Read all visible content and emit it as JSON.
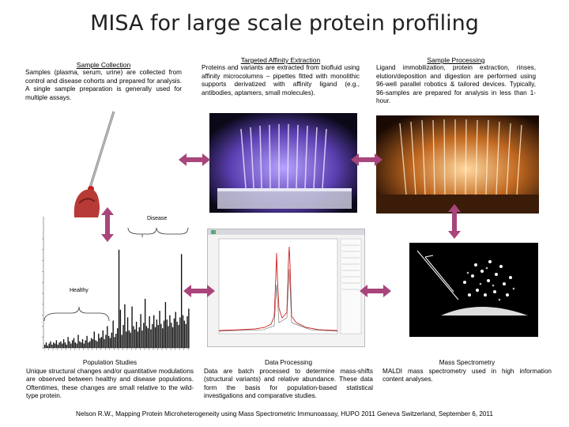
{
  "title": "MISA for large scale protein profiling",
  "sample_collection": {
    "heading": "Sample Collection",
    "text": "Samples (plasma, serum, urine) are collected from control and disease cohorts and prepared for analysis. A single sample preparation is generally used for multiple assays."
  },
  "targeted_affinity": {
    "heading": "Targeted Affinity Extraction",
    "text": "Proteins and variants are extracted from biofluid using affinity microcolumns – pipettes fitted with monolithic supports derivatized with affinity ligand (e.g., antibodies, aptamers, small molecules)."
  },
  "sample_processing": {
    "heading": "Sample Processing",
    "text": "Ligand immobilization, protein extraction, rinses, elution/deposition and digestion are performed using 96-well parallel robotics & tailored devices. Typically, 96-samples are prepared for analysis in less than 1-hour."
  },
  "population_studies": {
    "heading": "Population Studies",
    "text": "Unique structural changes and/or quantitative modulations are observed between healthy and disease populations. Oftentimes, these changes are small relative to the wild-type protein.",
    "disease_label": "Disease",
    "healthy_label": "Healthy"
  },
  "data_processing": {
    "heading": "Data Processing",
    "text": "Data are batch processed to determine mass-shifts (structural variants) and relative abundance. These data form the basis for population-based statistical investigations and comparative studies."
  },
  "mass_spectrometry": {
    "heading": "Mass Spectrometry",
    "text": "MALDI mass spectrometry used in high information content analyses."
  },
  "footer": "Nelson R.W., Mapping Protein Microheterogeneity using Mass Spectrometric Immunoassay, HUPO 2011 Geneva Switzerland, September 6, 2011",
  "colors": {
    "arrow": "#a8457a",
    "photo_bg": "#000000",
    "affinity_glow": "#7a5fd0",
    "processing_glow": "#f0b060",
    "spectrum_red": "#cc2222"
  },
  "chart_data": {
    "type": "bar",
    "title": "",
    "xlabel": "",
    "ylabel": "",
    "ylim": [
      0,
      10
    ],
    "values": [
      0.3,
      0.5,
      0.2,
      0.4,
      0.6,
      0.3,
      0.5,
      0.4,
      0.7,
      0.3,
      0.5,
      0.6,
      0.4,
      0.8,
      0.5,
      0.3,
      1.0,
      0.6,
      0.4,
      0.7,
      0.9,
      0.5,
      0.4,
      1.2,
      0.6,
      0.5,
      0.8,
      0.4,
      0.7,
      1.1,
      0.5,
      0.6,
      0.9,
      0.8,
      1.5,
      0.7,
      0.6,
      1.3,
      0.9,
      1.0,
      1.6,
      0.8,
      1.2,
      2.0,
      1.1,
      0.9,
      1.4,
      2.5,
      1.0,
      1.3,
      1.8,
      9.0,
      3.5,
      1.2,
      2.1,
      4.0,
      1.5,
      2.8,
      1.6,
      1.4,
      3.8,
      2.0,
      1.7,
      2.4,
      1.5,
      1.9,
      3.1,
      1.6,
      2.3,
      4.5,
      2.0,
      1.8,
      2.9,
      1.7,
      2.2,
      3.0,
      1.9,
      2.6,
      2.1,
      3.4,
      2.2,
      1.8,
      2.5,
      4.2,
      2.6,
      2.0,
      3.0,
      2.3,
      1.9,
      2.7,
      3.3,
      2.4,
      2.1,
      2.8,
      8.6,
      3.0,
      2.5,
      2.2,
      2.9,
      3.6
    ]
  }
}
